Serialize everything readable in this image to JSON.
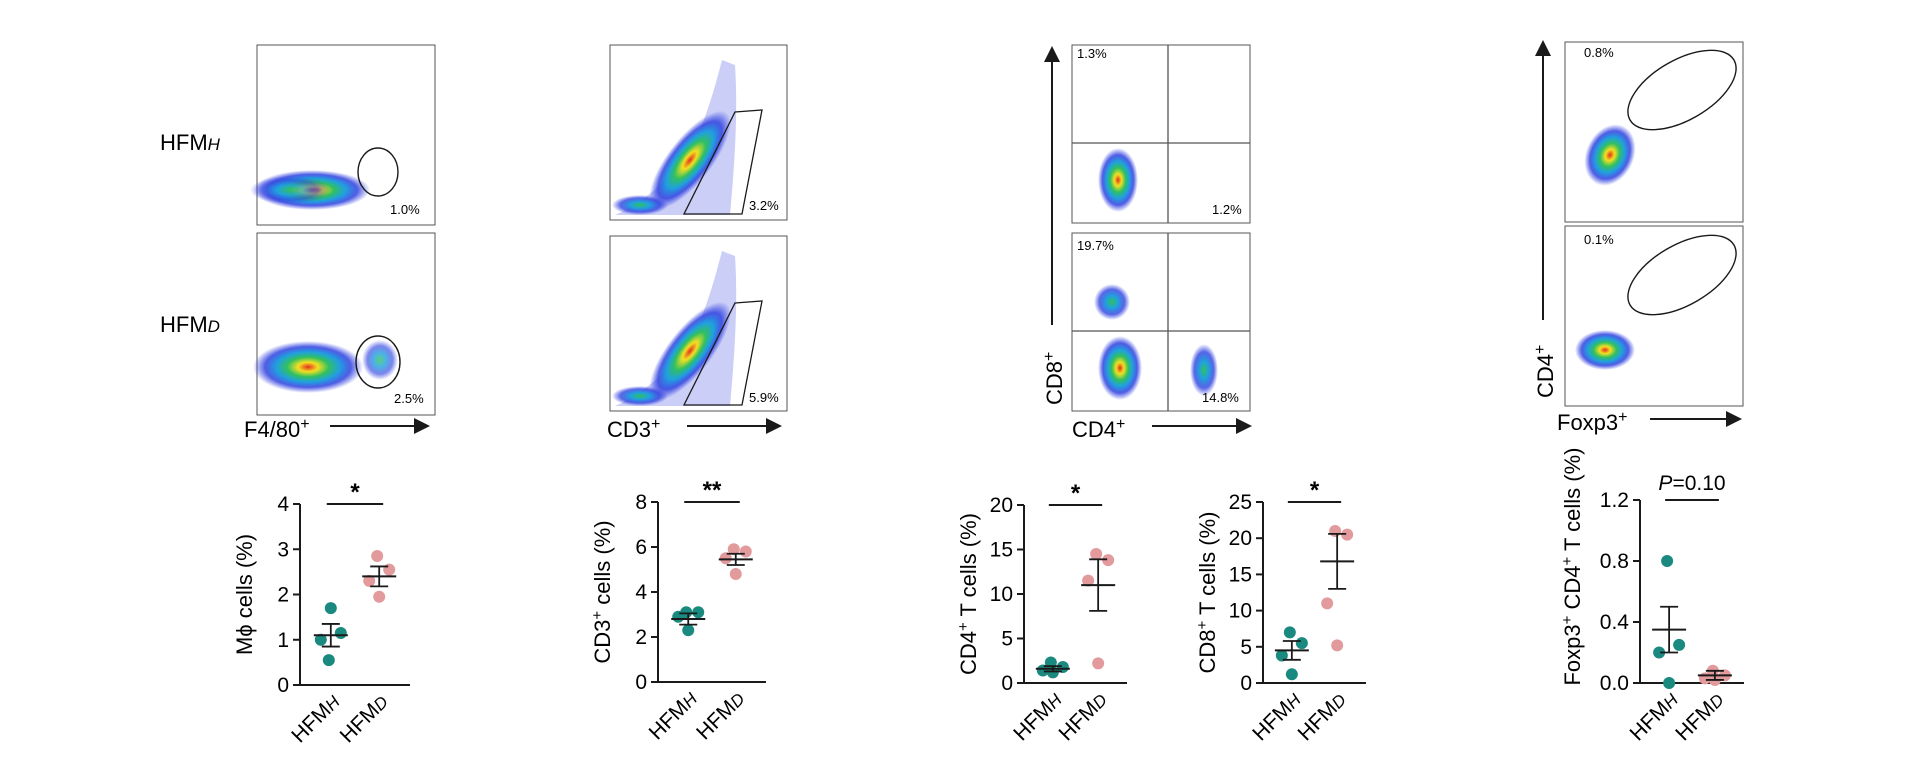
{
  "samples": {
    "h_main": "HFM",
    "h_sub": "H",
    "d_main": "HFM",
    "d_sub": "D"
  },
  "flow": {
    "mac": {
      "xlabel": "F4/80",
      "sup": "+",
      "h_pct": "1.0%",
      "d_pct": "2.5%"
    },
    "cd3": {
      "xlabel": "CD3",
      "sup": "+",
      "h_pct": "3.2%",
      "d_pct": "5.9%"
    },
    "cd48": {
      "xlabel": "CD4",
      "ylabel": "CD8",
      "sup": "+",
      "h_ul": "1.3%",
      "h_lr": "1.2%",
      "d_ul": "19.7%",
      "d_lr": "14.8%"
    },
    "foxp3": {
      "xlabel": "Foxp3",
      "ylabel": "CD4",
      "sup": "+",
      "h_pct": "0.8%",
      "d_pct": "0.1%"
    }
  },
  "colors": {
    "hfmh": "#1a8a80",
    "hfmd": "#e39a9c",
    "axis": "#1a1a1a"
  },
  "chart_data": [
    {
      "type": "scatter",
      "id": "mac",
      "ylabel_pre": "Mϕ cells (%)",
      "ylabel_sup": "",
      "ylabel_post": "",
      "categories": [
        "HFMH",
        "HFMD"
      ],
      "ylim": [
        0,
        4
      ],
      "yticks": [
        0,
        1,
        2,
        3,
        4
      ],
      "series": [
        {
          "name": "HFMH",
          "values": [
            0.55,
            1.15,
            1.0,
            1.7
          ],
          "mean": 1.1,
          "sem": 0.25
        },
        {
          "name": "HFMD",
          "values": [
            2.85,
            2.55,
            2.3,
            1.95
          ],
          "mean": 2.4,
          "sem": 0.22
        }
      ],
      "significance": "*"
    },
    {
      "type": "scatter",
      "id": "cd3",
      "ylabel_pre": "CD3",
      "ylabel_sup": "+",
      "ylabel_post": " cells (%)",
      "categories": [
        "HFMH",
        "HFMD"
      ],
      "ylim": [
        0,
        8
      ],
      "yticks": [
        0,
        2,
        4,
        6,
        8
      ],
      "series": [
        {
          "name": "HFMH",
          "values": [
            3.1,
            3.1,
            2.9,
            2.3
          ],
          "mean": 2.8,
          "sem": 0.25
        },
        {
          "name": "HFMD",
          "values": [
            5.9,
            5.8,
            5.5,
            4.8
          ],
          "mean": 5.45,
          "sem": 0.25
        }
      ],
      "significance": "**"
    },
    {
      "type": "scatter",
      "id": "cd4",
      "ylabel_pre": "CD4",
      "ylabel_sup": "+",
      "ylabel_post": " T cells (%)",
      "categories": [
        "HFMH",
        "HFMD"
      ],
      "ylim": [
        0,
        20
      ],
      "yticks": [
        0,
        5,
        10,
        15,
        20
      ],
      "series": [
        {
          "name": "HFMH",
          "values": [
            2.3,
            1.8,
            1.4,
            1.2
          ],
          "mean": 1.6,
          "sem": 0.3
        },
        {
          "name": "HFMD",
          "values": [
            14.5,
            13.8,
            11.5,
            2.2
          ],
          "mean": 11.0,
          "sem": 2.9
        }
      ],
      "significance": "*"
    },
    {
      "type": "scatter",
      "id": "cd8",
      "ylabel_pre": "CD8",
      "ylabel_sup": "+",
      "ylabel_post": " T cells (%)",
      "categories": [
        "HFMH",
        "HFMD"
      ],
      "ylim": [
        0,
        25
      ],
      "yticks": [
        0,
        5,
        10,
        15,
        20,
        25
      ],
      "series": [
        {
          "name": "HFMH",
          "values": [
            7.0,
            5.5,
            3.8,
            1.2
          ],
          "mean": 4.5,
          "sem": 1.3
        },
        {
          "name": "HFMD",
          "values": [
            21.0,
            20.5,
            11.0,
            5.2
          ],
          "mean": 16.8,
          "sem": 3.8
        }
      ],
      "significance": "*"
    },
    {
      "type": "scatter",
      "id": "foxp3",
      "ylabel_pre": "Foxp3",
      "ylabel_sup": "+",
      "ylabel_post": " CD4",
      "ylabel_sup2": "+",
      "ylabel_post2": " T cells (%)",
      "categories": [
        "HFMH",
        "HFMD"
      ],
      "ylim": [
        0,
        1.2
      ],
      "yticks": [
        0.0,
        0.4,
        0.8,
        1.2
      ],
      "series": [
        {
          "name": "HFMH",
          "values": [
            0.8,
            0.25,
            0.2,
            0.0
          ],
          "mean": 0.35,
          "sem": 0.15
        },
        {
          "name": "HFMD",
          "values": [
            0.08,
            0.05,
            0.03,
            0.02
          ],
          "mean": 0.05,
          "sem": 0.03
        }
      ],
      "significance": "P=0.10"
    }
  ]
}
